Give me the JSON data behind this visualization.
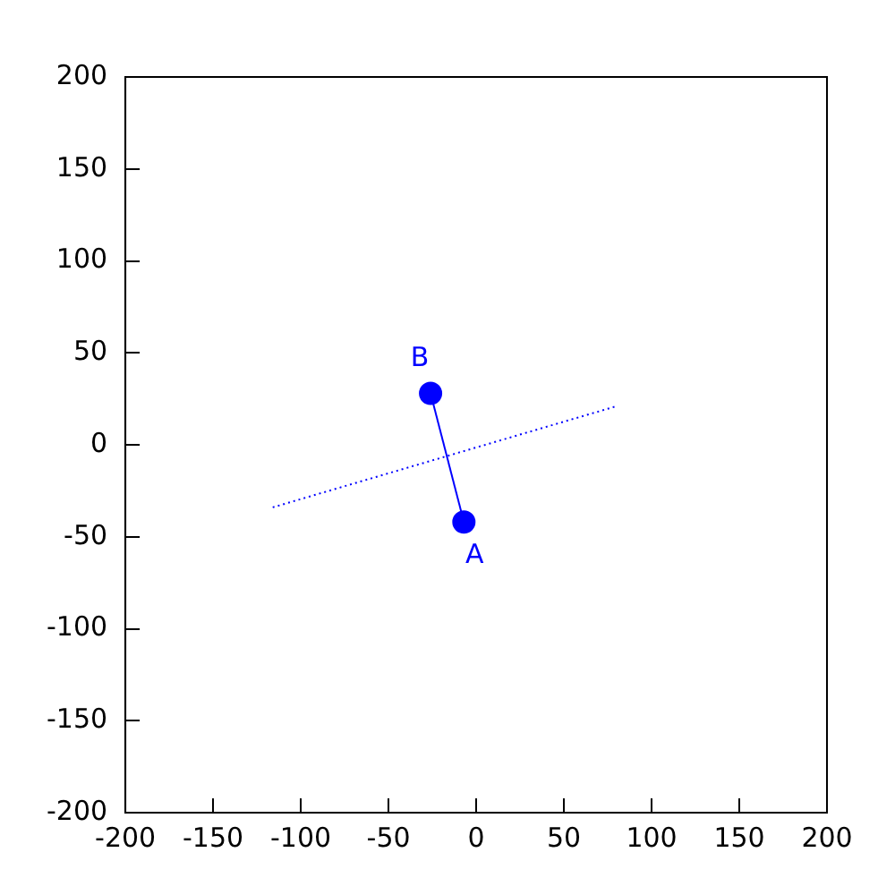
{
  "chart_data": {
    "type": "line",
    "xlim": [
      -200,
      200
    ],
    "ylim": [
      -200,
      200
    ],
    "xticks": [
      -200,
      -150,
      -100,
      -50,
      0,
      50,
      100,
      150,
      200
    ],
    "yticks": [
      -200,
      -150,
      -100,
      -50,
      0,
      50,
      100,
      150,
      200
    ],
    "grid": false,
    "legend": false,
    "series": [
      {
        "type": "line",
        "color": "#0000ff",
        "x": [
          -7,
          -26
        ],
        "values": [
          -42,
          28
        ],
        "marker": "circle",
        "line_style": "solid"
      },
      {
        "type": "line",
        "color": "#0000ff",
        "x": [
          -116,
          80
        ],
        "values": [
          -34,
          21
        ],
        "marker": "none",
        "line_style": "dotted"
      }
    ],
    "annotations": [
      {
        "text": "A",
        "x": -7,
        "y": -42
      },
      {
        "text": "B",
        "x": -26,
        "y": 28
      }
    ]
  }
}
